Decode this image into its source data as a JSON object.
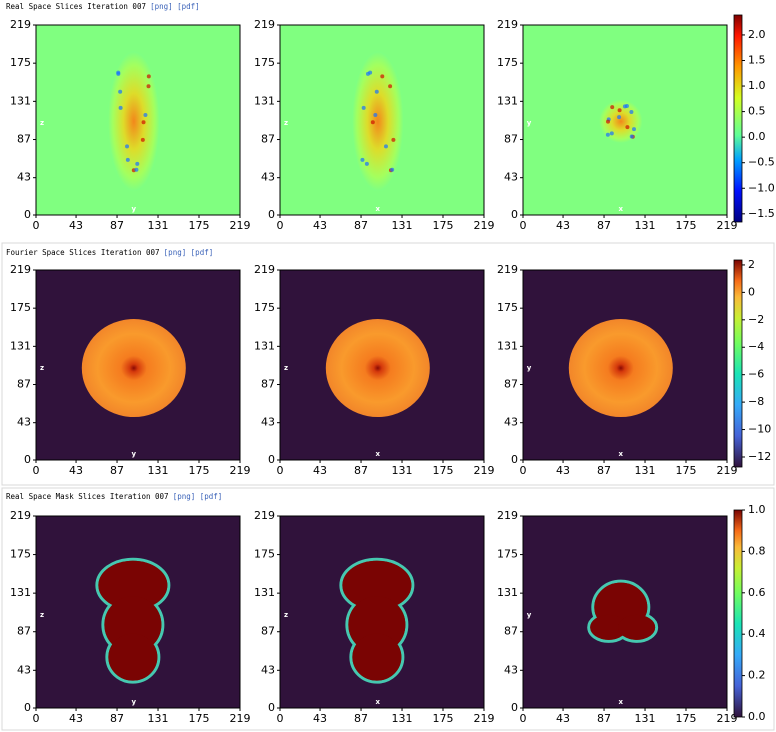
{
  "sections": [
    {
      "title": "Real Space Slices Iteration 007",
      "links": [
        "[png]",
        "[pdf]"
      ],
      "xlim": [
        0,
        219
      ],
      "ylim": [
        0,
        219
      ],
      "xticks": [
        0,
        43,
        87,
        131,
        175,
        219
      ],
      "yticks": [
        0,
        43,
        87,
        131,
        175,
        219
      ],
      "plots": [
        {
          "left_label": "z",
          "bottom_label": "y"
        },
        {
          "left_label": "z",
          "bottom_label": "x"
        },
        {
          "left_label": "y",
          "bottom_label": "x"
        }
      ],
      "colorbar": {
        "lim": [
          -1.66,
          2.39
        ],
        "ticks": [
          {
            "value": -1.5,
            "label": "−1.5"
          },
          {
            "value": -1,
            "label": "−1.0"
          },
          {
            "value": -0.5,
            "label": "−0.5"
          },
          {
            "value": 0,
            "label": "0.0"
          },
          {
            "value": 0.5,
            "label": "0.5"
          },
          {
            "value": 1,
            "label": "1.0"
          },
          {
            "value": 1.5,
            "label": "1.5"
          },
          {
            "value": 2,
            "label": "2.0"
          }
        ]
      }
    },
    {
      "title": "Fourier Space Slices Iteration 007",
      "links": [
        "[png]",
        "[pdf]"
      ],
      "xlim": [
        0,
        219
      ],
      "ylim": [
        0,
        219
      ],
      "xticks": [
        0,
        43,
        87,
        131,
        175,
        219
      ],
      "yticks": [
        0,
        43,
        87,
        131,
        175,
        219
      ],
      "plots": [
        {
          "left_label": "z",
          "bottom_label": "y"
        },
        {
          "left_label": "z",
          "bottom_label": "x"
        },
        {
          "left_label": "y",
          "bottom_label": "x"
        }
      ],
      "colorbar": {
        "lim": [
          -12.73,
          2.36
        ],
        "ticks": [
          {
            "value": -12,
            "label": "−12"
          },
          {
            "value": -10,
            "label": "−10"
          },
          {
            "value": -8,
            "label": "−8"
          },
          {
            "value": -6,
            "label": "−6"
          },
          {
            "value": -4,
            "label": "−4"
          },
          {
            "value": -2,
            "label": "−2"
          },
          0,
          2
        ]
      }
    },
    {
      "title": "Real Space Mask Slices Iteration 007",
      "links": [
        "[png]",
        "[pdf]"
      ],
      "xlim": [
        0,
        219
      ],
      "ylim": [
        0,
        219
      ],
      "xticks": [
        0,
        43,
        87,
        131,
        175,
        219
      ],
      "yticks": [
        0,
        43,
        87,
        131,
        175,
        219
      ],
      "plots": [
        {
          "left_label": "z",
          "bottom_label": "y"
        },
        {
          "left_label": "z",
          "bottom_label": "x"
        },
        {
          "left_label": "y",
          "bottom_label": "x"
        }
      ],
      "colorbar": {
        "lim": [
          0,
          1
        ],
        "ticks": [
          {
            "value": 0,
            "label": "0.0"
          },
          {
            "value": 0.2,
            "label": "0.2"
          },
          {
            "value": 0.4,
            "label": "0.4"
          },
          {
            "value": 0.6,
            "label": "0.6"
          },
          {
            "value": 0.8,
            "label": "0.8"
          },
          {
            "value": 1,
            "label": "1.0"
          }
        ]
      }
    }
  ]
}
